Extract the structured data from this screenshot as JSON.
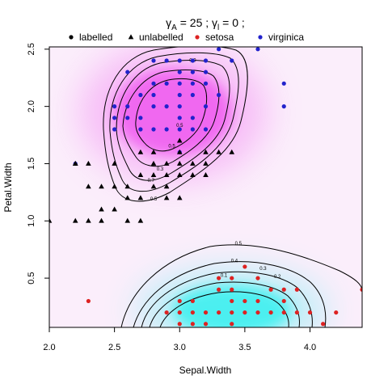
{
  "chart_data": {
    "type": "scatter",
    "title_parts": {
      "gamma": "γ",
      "sub_a": "A",
      "eq_a": " = 25 ; ",
      "sub_i": "l",
      "eq_i": " = 0 ;"
    },
    "xlabel": "Sepal.Width",
    "ylabel": "Petal.Width",
    "xlim": [
      2.0,
      4.4
    ],
    "ylim": [
      0.07,
      2.52
    ],
    "x_ticks": [
      {
        "value": 2.0,
        "label": "2.0"
      },
      {
        "value": 2.5,
        "label": "2.5"
      },
      {
        "value": 3.0,
        "label": "3.0"
      },
      {
        "value": 3.5,
        "label": "3.5"
      },
      {
        "value": 4.0,
        "label": "4.0"
      }
    ],
    "y_ticks": [
      {
        "value": 0.5,
        "label": "0.5"
      },
      {
        "value": 1.0,
        "label": "1.0"
      },
      {
        "value": 1.5,
        "label": "1.5"
      },
      {
        "value": 2.0,
        "label": "2.0"
      },
      {
        "value": 2.5,
        "label": "2.5"
      }
    ],
    "legend": {
      "placement": "top",
      "entries": [
        {
          "label": "labelled",
          "marker": "circle",
          "color": "#000000"
        },
        {
          "label": "unlabelled",
          "marker": "triangle",
          "color": "#000000"
        },
        {
          "label": "setosa",
          "marker": "circle",
          "color": "#dd2222"
        },
        {
          "label": "virginica",
          "marker": "circle",
          "color": "#2222cc"
        }
      ]
    },
    "density_regions": [
      {
        "class": "virginica",
        "color": "#f060f0",
        "center": [
          2.95,
          1.95
        ],
        "spread": [
          0.45,
          0.38
        ]
      },
      {
        "class": "setosa",
        "color": "#40f0f0",
        "center": [
          3.4,
          0.22
        ],
        "spread": [
          0.45,
          0.22
        ]
      }
    ],
    "contour_labels": [
      {
        "text": "0.9",
        "x": 3.1,
        "y": 2.39
      },
      {
        "text": "0.5",
        "x": 3.0,
        "y": 1.82
      },
      {
        "text": "0.5",
        "x": 2.94,
        "y": 1.64
      },
      {
        "text": "0.3",
        "x": 2.85,
        "y": 1.44
      },
      {
        "text": "0.7",
        "x": 2.78,
        "y": 1.34
      },
      {
        "text": "0.5",
        "x": 2.8,
        "y": 1.18
      },
      {
        "text": "0.5",
        "x": 3.45,
        "y": 0.79
      },
      {
        "text": "0.4",
        "x": 3.42,
        "y": 0.64
      },
      {
        "text": "0.3",
        "x": 3.64,
        "y": 0.57
      },
      {
        "text": "0.2",
        "x": 3.75,
        "y": 0.5
      },
      {
        "text": "0.1",
        "x": 3.34,
        "y": 0.51
      }
    ],
    "series": [
      {
        "name": "setosa",
        "marker": "circle",
        "color": "#dd2222",
        "points": [
          [
            2.3,
            0.3
          ],
          [
            2.9,
            0.2
          ],
          [
            3.0,
            0.1
          ],
          [
            3.0,
            0.2
          ],
          [
            3.0,
            0.3
          ],
          [
            3.1,
            0.1
          ],
          [
            3.1,
            0.2
          ],
          [
            3.2,
            0.2
          ],
          [
            3.3,
            0.2
          ],
          [
            3.3,
            0.5
          ],
          [
            3.4,
            0.2
          ],
          [
            3.4,
            0.3
          ],
          [
            3.4,
            0.4
          ],
          [
            3.5,
            0.2
          ],
          [
            3.5,
            0.3
          ],
          [
            3.6,
            0.2
          ],
          [
            3.7,
            0.2
          ],
          [
            3.7,
            0.4
          ],
          [
            3.8,
            0.2
          ],
          [
            3.8,
            0.3
          ],
          [
            3.9,
            0.2
          ],
          [
            4.0,
            0.2
          ],
          [
            4.1,
            0.1
          ],
          [
            4.2,
            0.2
          ],
          [
            4.4,
            0.4
          ],
          [
            3.5,
            0.6
          ],
          [
            3.6,
            0.5
          ],
          [
            3.4,
            0.5
          ],
          [
            3.2,
            0.1
          ],
          [
            3.9,
            0.4
          ],
          [
            3.8,
            0.4
          ],
          [
            3.3,
            0.4
          ],
          [
            3.1,
            0.3
          ],
          [
            3.6,
            0.3
          ],
          [
            3.4,
            0.1
          ]
        ]
      },
      {
        "name": "virginica",
        "marker": "circle",
        "color": "#2222cc",
        "points": [
          [
            2.5,
            1.8
          ],
          [
            2.5,
            2.0
          ],
          [
            2.6,
            2.3
          ],
          [
            2.7,
            1.8
          ],
          [
            2.7,
            1.9
          ],
          [
            2.8,
            1.8
          ],
          [
            2.8,
            2.0
          ],
          [
            2.8,
            2.1
          ],
          [
            2.8,
            2.2
          ],
          [
            2.8,
            2.4
          ],
          [
            2.9,
            1.8
          ],
          [
            3.0,
            1.8
          ],
          [
            3.0,
            2.1
          ],
          [
            3.0,
            2.2
          ],
          [
            3.0,
            2.3
          ],
          [
            3.1,
            1.8
          ],
          [
            3.1,
            2.1
          ],
          [
            3.1,
            2.3
          ],
          [
            3.1,
            2.4
          ],
          [
            3.2,
            2.0
          ],
          [
            3.2,
            2.3
          ],
          [
            3.3,
            2.1
          ],
          [
            3.3,
            2.5
          ],
          [
            3.4,
            2.4
          ],
          [
            3.6,
            2.5
          ],
          [
            3.8,
            2.0
          ],
          [
            3.8,
            2.2
          ],
          [
            2.6,
            1.9
          ],
          [
            2.9,
            2.0
          ],
          [
            3.0,
            2.0
          ],
          [
            3.2,
            1.8
          ],
          [
            2.5,
            1.9
          ],
          [
            2.2,
            1.5
          ],
          [
            3.0,
            1.9
          ],
          [
            2.9,
            2.2
          ],
          [
            3.1,
            1.9
          ],
          [
            3.2,
            2.2
          ],
          [
            3.0,
            2.4
          ],
          [
            2.7,
            2.1
          ],
          [
            3.1,
            2.2
          ],
          [
            2.9,
            2.4
          ],
          [
            3.2,
            2.4
          ],
          [
            3.0,
            1.6
          ],
          [
            2.6,
            2.0
          ]
        ]
      },
      {
        "name": "unlabelled",
        "marker": "triangle",
        "color": "#000000",
        "points": [
          [
            2.0,
            1.0
          ],
          [
            2.2,
            1.0
          ],
          [
            2.2,
            1.5
          ],
          [
            2.3,
            1.0
          ],
          [
            2.3,
            1.3
          ],
          [
            2.4,
            1.0
          ],
          [
            2.4,
            1.1
          ],
          [
            2.5,
            1.1
          ],
          [
            2.5,
            1.3
          ],
          [
            2.5,
            1.5
          ],
          [
            2.6,
            1.0
          ],
          [
            2.6,
            1.2
          ],
          [
            2.7,
            1.0
          ],
          [
            2.7,
            1.2
          ],
          [
            2.7,
            1.4
          ],
          [
            2.7,
            1.6
          ],
          [
            2.8,
            1.3
          ],
          [
            2.8,
            1.5
          ],
          [
            2.8,
            1.6
          ],
          [
            2.9,
            1.2
          ],
          [
            2.9,
            1.3
          ],
          [
            2.9,
            1.5
          ],
          [
            3.0,
            1.2
          ],
          [
            3.0,
            1.4
          ],
          [
            3.0,
            1.5
          ],
          [
            3.0,
            1.6
          ],
          [
            3.0,
            1.7
          ],
          [
            3.1,
            1.5
          ],
          [
            3.2,
            1.4
          ],
          [
            3.2,
            1.5
          ],
          [
            3.2,
            1.6
          ],
          [
            3.3,
            1.6
          ],
          [
            3.4,
            1.6
          ],
          [
            2.8,
            1.4
          ],
          [
            2.4,
            1.3
          ],
          [
            2.9,
            1.4
          ],
          [
            3.1,
            1.4
          ],
          [
            2.6,
            1.3
          ],
          [
            2.3,
            1.5
          ],
          [
            2.2,
            1.5
          ]
        ]
      }
    ]
  }
}
